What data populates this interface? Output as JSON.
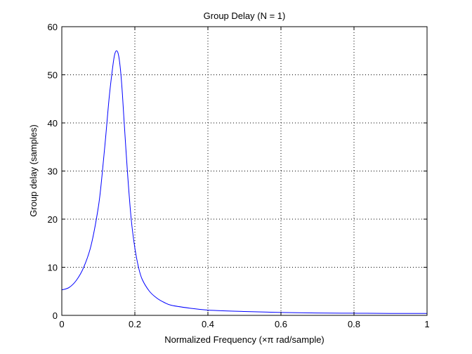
{
  "chart_data": {
    "type": "line",
    "title": "Group Delay (N = 1)",
    "xlabel": "Normalized Frequency (×π rad/sample)",
    "ylabel": "Group delay (samples)",
    "xlim": [
      0,
      1
    ],
    "ylim": [
      0,
      60
    ],
    "xticks": [
      0,
      0.2,
      0.4,
      0.6,
      0.8,
      1
    ],
    "xtick_labels": [
      "0",
      "0.2",
      "0.4",
      "0.6",
      "0.8",
      "1"
    ],
    "yticks": [
      0,
      10,
      20,
      30,
      40,
      50,
      60
    ],
    "ytick_labels": [
      "0",
      "10",
      "20",
      "30",
      "40",
      "50",
      "60"
    ],
    "grid": true,
    "series": [
      {
        "color": "#0000ff",
        "x": [
          0,
          0.02,
          0.04,
          0.06,
          0.08,
          0.1,
          0.11,
          0.12,
          0.13,
          0.14,
          0.145,
          0.15,
          0.155,
          0.16,
          0.165,
          0.17,
          0.18,
          0.19,
          0.2,
          0.21,
          0.22,
          0.24,
          0.26,
          0.28,
          0.3,
          0.35,
          0.4,
          0.5,
          0.6,
          0.7,
          0.8,
          0.9,
          1.0
        ],
        "y": [
          5.3,
          5.8,
          7.3,
          10.0,
          14.5,
          22.5,
          29.0,
          37.0,
          45.5,
          52.0,
          54.3,
          55.0,
          54.2,
          51.5,
          47.0,
          41.0,
          29.5,
          20.0,
          14.0,
          10.0,
          7.5,
          5.0,
          3.6,
          2.7,
          2.1,
          1.5,
          1.1,
          0.8,
          0.6,
          0.5,
          0.45,
          0.4,
          0.4
        ]
      }
    ]
  }
}
